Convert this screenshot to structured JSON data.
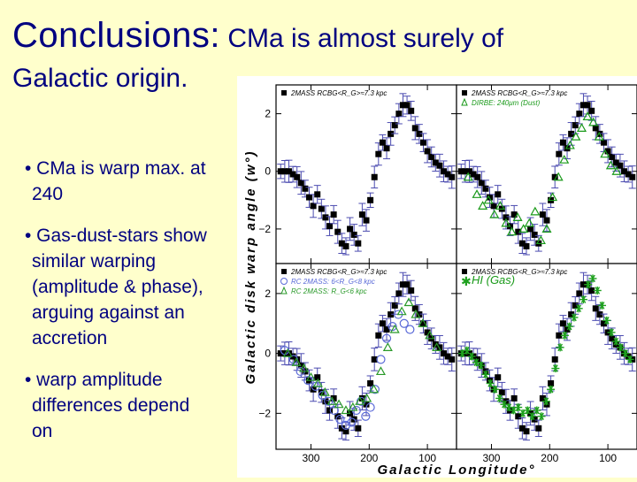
{
  "slide": {
    "title_main": "Conclusions:",
    "title_rest": " CMa is almost surely of",
    "title_line2": "Galactic origin.",
    "bullets": [
      "• CMa is warp max. at 240",
      "• Gas-dust-stars show similar warping (amplitude & phase), arguing against an accretion",
      "• warp amplitude differences depend on"
    ]
  },
  "chart_data": [
    {
      "type": "scatter",
      "panel": "top-left",
      "series": [
        {
          "name": "2MASS RCBG<R_G>=7.3 kpc",
          "marker": "filled-square",
          "x": [
            352,
            345,
            338,
            331,
            324,
            317,
            310,
            303,
            296,
            289,
            282,
            275,
            268,
            261,
            254,
            247,
            240,
            233,
            226,
            219,
            212,
            205,
            198,
            191,
            184,
            177,
            170,
            163,
            156,
            149,
            142,
            135,
            128,
            121,
            114,
            107,
            100,
            93,
            86,
            79,
            72,
            65,
            58
          ],
          "y": [
            0.0,
            0.0,
            0.0,
            -0.1,
            -0.2,
            -0.4,
            -0.6,
            -0.9,
            -1.2,
            -0.8,
            -1.3,
            -1.6,
            -1.9,
            -1.5,
            -2.1,
            -2.5,
            -2.6,
            -2.0,
            -2.2,
            -2.5,
            -1.5,
            -1.7,
            -1.0,
            -0.2,
            0.6,
            1.0,
            0.8,
            1.3,
            1.6,
            2.0,
            2.3,
            2.3,
            2.1,
            1.5,
            1.3,
            1.0,
            0.7,
            0.5,
            0.3,
            0.2,
            0.0,
            -0.1,
            -0.2
          ]
        }
      ],
      "legend": [
        "2MASS RCBG<R_G>≈7.3 kpc"
      ]
    },
    {
      "type": "scatter",
      "panel": "top-right",
      "series": [
        {
          "name": "2MASS RCBG<R_G>=7.3 kpc",
          "marker": "filled-square",
          "x": [
            352,
            345,
            338,
            331,
            324,
            317,
            310,
            303,
            296,
            289,
            282,
            275,
            268,
            261,
            254,
            247,
            240,
            233,
            226,
            219,
            212,
            205,
            198,
            191,
            184,
            177,
            170,
            163,
            156,
            149,
            142,
            135,
            128,
            121,
            114,
            107,
            100,
            93,
            86,
            79,
            72,
            65,
            58
          ],
          "y": [
            0.0,
            0.0,
            0.0,
            -0.1,
            -0.2,
            -0.4,
            -0.6,
            -0.9,
            -1.2,
            -0.8,
            -1.3,
            -1.6,
            -1.9,
            -1.5,
            -2.1,
            -2.5,
            -2.6,
            -2.0,
            -2.2,
            -2.5,
            -1.5,
            -1.7,
            -1.0,
            -0.2,
            0.6,
            1.0,
            0.8,
            1.3,
            1.6,
            2.0,
            2.3,
            2.3,
            2.1,
            1.5,
            1.3,
            1.0,
            0.7,
            0.5,
            0.3,
            0.2,
            0.0,
            -0.1,
            -0.2
          ]
        },
        {
          "name": "DIRBE: 240um (Dust)",
          "marker": "open-triangle",
          "x": [
            340,
            325,
            315,
            305,
            295,
            285,
            275,
            265,
            255,
            245,
            235,
            225,
            215,
            205,
            195,
            185,
            175,
            165,
            155,
            145,
            135,
            125,
            115,
            105,
            95,
            85
          ],
          "y": [
            -0.2,
            -0.8,
            -1.2,
            -1.0,
            -1.5,
            -1.2,
            -1.8,
            -2.1,
            -1.6,
            -2.0,
            -1.8,
            -1.4,
            -2.4,
            -2.0,
            -0.9,
            -0.2,
            0.4,
            0.9,
            1.2,
            1.5,
            1.9,
            1.7,
            1.2,
            0.6,
            0.2,
            0.0
          ]
        }
      ],
      "legend": [
        "2MASS RCBG<R_G>≈7.3 kpc",
        "DIRBE: 240μm (Dust)"
      ]
    },
    {
      "type": "scatter",
      "panel": "bottom-left",
      "series": [
        {
          "name": "2MASS RCBG<R_G>=7.3 kpc",
          "marker": "filled-square",
          "x": [
            352,
            345,
            338,
            331,
            324,
            317,
            310,
            303,
            296,
            289,
            282,
            275,
            268,
            261,
            254,
            247,
            240,
            233,
            226,
            219,
            212,
            205,
            198,
            191,
            184,
            177,
            170,
            163,
            156,
            149,
            142,
            135,
            128,
            121,
            114,
            107,
            100,
            93,
            86,
            79,
            72,
            65,
            58
          ],
          "y": [
            0.0,
            0.0,
            0.0,
            -0.1,
            -0.2,
            -0.4,
            -0.6,
            -0.9,
            -1.2,
            -0.8,
            -1.3,
            -1.6,
            -1.9,
            -1.5,
            -2.1,
            -2.5,
            -2.6,
            -2.0,
            -2.2,
            -2.5,
            -1.5,
            -1.7,
            -1.0,
            -0.2,
            0.6,
            1.0,
            0.8,
            1.3,
            1.6,
            2.0,
            2.3,
            2.3,
            2.1,
            1.5,
            1.3,
            1.0,
            0.7,
            0.5,
            0.3,
            0.2,
            0.0,
            -0.1,
            -0.2
          ]
        },
        {
          "name": "RC 2MASS: 6<R_G<8 kpc",
          "marker": "open-circle",
          "x": [
            345,
            330,
            318,
            305,
            292,
            280,
            270,
            260,
            250,
            240,
            230,
            222,
            214,
            206,
            198,
            190,
            180,
            170,
            160,
            150,
            140,
            130
          ],
          "y": [
            0.1,
            -0.2,
            -0.6,
            -0.9,
            -1.1,
            -1.4,
            -1.6,
            -1.9,
            -2.2,
            -2.4,
            -2.3,
            -1.9,
            -1.6,
            -2.1,
            -1.8,
            -1.2,
            -0.2,
            0.5,
            0.9,
            1.3,
            1.0,
            0.8
          ]
        },
        {
          "name": "RC 2MASS: R_G<6 kpc",
          "marker": "open-triangle",
          "x": [
            340,
            325,
            312,
            300,
            288,
            276,
            264,
            252,
            240,
            228,
            216,
            204,
            192,
            180,
            168,
            156,
            144,
            132,
            120,
            108,
            96,
            84
          ],
          "y": [
            0.0,
            -0.3,
            -0.5,
            -0.8,
            -1.0,
            -1.3,
            -1.6,
            -1.7,
            -1.9,
            -1.8,
            -1.6,
            -1.5,
            -1.2,
            -0.6,
            0.2,
            0.8,
            1.4,
            1.7,
            1.3,
            1.0,
            0.6,
            0.2
          ]
        }
      ],
      "legend": [
        "2MASS RCBG<R_G>≈7.3 kpc",
        "RC 2MASS: 6<R_G<8 kpc",
        "RC 2MASS: R_G<6 kpc"
      ]
    },
    {
      "type": "scatter",
      "panel": "bottom-right",
      "series": [
        {
          "name": "2MASS RCBG<R_G>=7.3 kpc",
          "marker": "filled-square",
          "x": [
            352,
            345,
            338,
            331,
            324,
            317,
            310,
            303,
            296,
            289,
            282,
            275,
            268,
            261,
            254,
            247,
            240,
            233,
            226,
            219,
            212,
            205,
            198,
            191,
            184,
            177,
            170,
            163,
            156,
            149,
            142,
            135,
            128,
            121,
            114,
            107,
            100,
            93,
            86,
            79,
            72,
            65,
            58
          ],
          "y": [
            0.0,
            0.0,
            0.0,
            -0.1,
            -0.2,
            -0.4,
            -0.6,
            -0.9,
            -1.2,
            -0.8,
            -1.3,
            -1.6,
            -1.9,
            -1.5,
            -2.1,
            -2.5,
            -2.6,
            -2.0,
            -2.2,
            -2.5,
            -1.5,
            -1.7,
            -1.0,
            -0.2,
            0.6,
            1.0,
            0.8,
            1.3,
            1.6,
            2.0,
            2.3,
            2.3,
            2.1,
            1.5,
            1.3,
            1.0,
            0.7,
            0.5,
            0.3,
            0.2,
            0.0,
            -0.1,
            -0.2
          ]
        },
        {
          "name": "HI (Gas)",
          "marker": "asterisk",
          "x": [
            350,
            342,
            334,
            326,
            318,
            310,
            302,
            294,
            286,
            278,
            270,
            262,
            254,
            246,
            238,
            230,
            222,
            214,
            206,
            198,
            190,
            182,
            174,
            166,
            158,
            150,
            142,
            134,
            126,
            118,
            110,
            102,
            94,
            86,
            78,
            70,
            62
          ],
          "y": [
            0.0,
            0.1,
            -0.1,
            -0.3,
            -0.4,
            -0.7,
            -1.0,
            -1.2,
            -1.5,
            -1.7,
            -1.8,
            -1.9,
            -1.8,
            -2.0,
            -1.9,
            -2.1,
            -1.9,
            -2.1,
            -1.6,
            -1.2,
            -0.5,
            0.2,
            0.6,
            0.9,
            1.2,
            1.5,
            1.8,
            2.3,
            2.5,
            2.1,
            1.6,
            1.1,
            0.7,
            0.4,
            0.2,
            0.0,
            -0.2
          ]
        }
      ],
      "legend": [
        "2MASS RCBG<R_G>≈7.3 kpc",
        "HI (Gas)"
      ]
    }
  ],
  "axes": {
    "xlabel": "Galactic   Longitude°",
    "ylabel": "Galactic disk  warp  angle  (w°)",
    "xlim": [
      360,
      50
    ],
    "ylim": [
      -3.2,
      3.0
    ],
    "xticks": [
      "300",
      "200",
      "100"
    ],
    "xtick_values": [
      300,
      200,
      100
    ],
    "yticks": [
      "2",
      "0",
      "−2"
    ],
    "ytick_values": [
      2,
      0,
      -2
    ]
  },
  "colors": {
    "title": "#000080",
    "background": "#ffffcc",
    "stars": "#000000",
    "errorbars": "#4a4ab0",
    "dust": "#1a9a1a",
    "rc_circle": "#5a6ad8",
    "rc_triangle": "#2a9a2a",
    "hi_gas": "#1ea01e"
  }
}
